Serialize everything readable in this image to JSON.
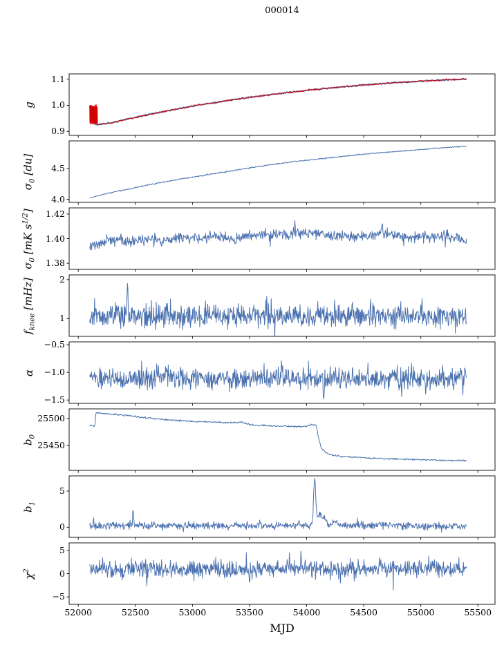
{
  "chart": {
    "type": "line",
    "title": "000014",
    "xlabel": "MJD",
    "xlim": [
      51920,
      55650
    ],
    "x_data_range": [
      52100,
      55400
    ],
    "xticks": [
      [
        52000,
        "52000"
      ],
      [
        52500,
        "52500"
      ],
      [
        53000,
        "53000"
      ],
      [
        53500,
        "53500"
      ],
      [
        54000,
        "54000"
      ],
      [
        54500,
        "54500"
      ],
      [
        55000,
        "55000"
      ],
      [
        55500,
        "55500"
      ]
    ],
    "line_color": "#4c72b0",
    "overlay_color": "#d40000",
    "axis_color": "#000000",
    "panels": [
      {
        "name": "gain",
        "ylabel": "g",
        "ylim": [
          0.885,
          1.12
        ],
        "yticks": [
          [
            0.9,
            "0.9"
          ],
          [
            1.0,
            "1.0"
          ],
          [
            1.1,
            "1.1"
          ]
        ],
        "series": [
          {
            "name": "g-fit-blue",
            "color": "#4c72b0",
            "lw": 1.8,
            "noise": 0.0012,
            "n": 520,
            "keypoints": [
              [
                52100,
                0.998
              ],
              [
                52118,
                0.955
              ],
              [
                52135,
                0.93
              ],
              [
                52170,
                0.926
              ],
              [
                52300,
                0.934
              ],
              [
                52450,
                0.949
              ],
              [
                52600,
                0.963
              ],
              [
                52800,
                0.981
              ],
              [
                53000,
                0.997
              ],
              [
                53200,
                1.011
              ],
              [
                53400,
                1.024
              ],
              [
                53600,
                1.036
              ],
              [
                53800,
                1.047
              ],
              [
                54000,
                1.057
              ],
              [
                54200,
                1.066
              ],
              [
                54400,
                1.074
              ],
              [
                54600,
                1.081
              ],
              [
                54800,
                1.087
              ],
              [
                55000,
                1.092
              ],
              [
                55200,
                1.097
              ],
              [
                55400,
                1.1
              ]
            ]
          },
          {
            "name": "g-data-red",
            "color": "#d40000",
            "lw": 1.0,
            "noise": 0.0018,
            "n": 520,
            "burst": {
              "x0": 52100,
              "x1": 52168,
              "ymin": 0.928,
              "ymax": 1.002
            },
            "keypoints": [
              [
                52100,
                0.998
              ],
              [
                52118,
                0.955
              ],
              [
                52135,
                0.93
              ],
              [
                52170,
                0.926
              ],
              [
                52300,
                0.934
              ],
              [
                52450,
                0.949
              ],
              [
                52600,
                0.963
              ],
              [
                52800,
                0.981
              ],
              [
                53000,
                0.997
              ],
              [
                53200,
                1.011
              ],
              [
                53400,
                1.024
              ],
              [
                53600,
                1.036
              ],
              [
                53800,
                1.047
              ],
              [
                54000,
                1.057
              ],
              [
                54200,
                1.066
              ],
              [
                54400,
                1.074
              ],
              [
                54600,
                1.081
              ],
              [
                54800,
                1.087
              ],
              [
                55000,
                1.092
              ],
              [
                55200,
                1.097
              ],
              [
                55400,
                1.1
              ]
            ]
          }
        ]
      },
      {
        "name": "sigma0-du",
        "ylabel": "σ_{0} [du]",
        "ylim": [
          3.95,
          4.95
        ],
        "yticks": [
          [
            4.0,
            "4.0"
          ],
          [
            4.5,
            "4.5"
          ]
        ],
        "series": [
          {
            "name": "sigma0-du-line",
            "color": "#4c72b0",
            "lw": 1.0,
            "noise": 0.005,
            "n": 700,
            "keypoints": [
              [
                52100,
                4.02
              ],
              [
                52200,
                4.07
              ],
              [
                52350,
                4.135
              ],
              [
                52500,
                4.19
              ],
              [
                52700,
                4.265
              ],
              [
                52900,
                4.33
              ],
              [
                53100,
                4.39
              ],
              [
                53300,
                4.45
              ],
              [
                53500,
                4.51
              ],
              [
                53700,
                4.565
              ],
              [
                53900,
                4.615
              ],
              [
                54100,
                4.655
              ],
              [
                54300,
                4.695
              ],
              [
                54500,
                4.735
              ],
              [
                54700,
                4.765
              ],
              [
                54900,
                4.795
              ],
              [
                55100,
                4.825
              ],
              [
                55250,
                4.845
              ],
              [
                55400,
                4.865
              ]
            ]
          }
        ]
      },
      {
        "name": "sigma0-mk",
        "ylabel": "σ_{0} [mK s^{1/2}]",
        "ylim": [
          1.375,
          1.425
        ],
        "yticks": [
          [
            1.38,
            "1.38"
          ],
          [
            1.4,
            "1.40"
          ],
          [
            1.42,
            "1.42"
          ]
        ],
        "series": [
          {
            "name": "sigma0-mk-line",
            "color": "#4c72b0",
            "lw": 1.0,
            "noise": 0.0021,
            "heavy": true,
            "n": 800,
            "spikes": [
              [
                54660,
                0.009,
                6
              ]
            ],
            "keypoints": [
              [
                52100,
                1.3935
              ],
              [
                52200,
                1.3965
              ],
              [
                52300,
                1.3985
              ],
              [
                52450,
                1.3975
              ],
              [
                52600,
                1.3995
              ],
              [
                52750,
                1.398
              ],
              [
                52900,
                1.4
              ],
              [
                53050,
                1.4005
              ],
              [
                53200,
                1.4015
              ],
              [
                53350,
                1.4
              ],
              [
                53500,
                1.402
              ],
              [
                53650,
                1.403
              ],
              [
                53800,
                1.4035
              ],
              [
                53950,
                1.4045
              ],
              [
                54100,
                1.4035
              ],
              [
                54250,
                1.402
              ],
              [
                54400,
                1.4015
              ],
              [
                54550,
                1.4025
              ],
              [
                54700,
                1.4045
              ],
              [
                54850,
                1.4005
              ],
              [
                55000,
                1.4015
              ],
              [
                55150,
                1.4025
              ],
              [
                55300,
                1.4005
              ],
              [
                55400,
                1.398
              ]
            ]
          }
        ]
      },
      {
        "name": "fknee",
        "ylabel": "f_{knee} [mHz]",
        "ylim": [
          0.55,
          2.12
        ],
        "yticks": [
          [
            1,
            "1"
          ],
          [
            2,
            "2"
          ]
        ],
        "series": [
          {
            "name": "fknee-line",
            "color": "#4c72b0",
            "lw": 1.0,
            "noise": 0.15,
            "heavy": true,
            "n": 850,
            "spikes": [
              [
                52430,
                0.85,
                5
              ],
              [
                53650,
                0.35,
                4
              ],
              [
                54560,
                0.3,
                4
              ]
            ],
            "keypoints": [
              [
                52100,
                1.08
              ],
              [
                53000,
                1.06
              ],
              [
                54000,
                1.07
              ],
              [
                55400,
                1.03
              ]
            ]
          }
        ]
      },
      {
        "name": "alpha",
        "ylabel": "α",
        "ylim": [
          -1.56,
          -0.45
        ],
        "yticks": [
          [
            -1.5,
            "−1.5"
          ],
          [
            -1.0,
            "−1.0"
          ],
          [
            -0.5,
            "−0.5"
          ]
        ],
        "series": [
          {
            "name": "alpha-line",
            "color": "#4c72b0",
            "lw": 1.0,
            "noise": 0.095,
            "heavy": true,
            "n": 850,
            "spikes": [
              [
                53780,
                0.32,
                4
              ],
              [
                54150,
                -0.3,
                4
              ]
            ],
            "keypoints": [
              [
                52100,
                -1.11
              ],
              [
                53500,
                -1.1
              ],
              [
                54500,
                -1.12
              ],
              [
                55400,
                -1.1
              ]
            ]
          }
        ]
      },
      {
        "name": "b0",
        "ylabel": "b_{0}",
        "ylim": [
          25403,
          25518
        ],
        "yticks": [
          [
            25450,
            "25450"
          ],
          [
            25500,
            "25500"
          ]
        ],
        "series": [
          {
            "name": "b0-line",
            "color": "#4c72b0",
            "lw": 1.0,
            "noise": 0.7,
            "n": 800,
            "keypoints": [
              [
                52100,
                25487
              ],
              [
                52145,
                25486
              ],
              [
                52155,
                25511
              ],
              [
                52300,
                25508
              ],
              [
                52450,
                25505
              ],
              [
                52600,
                25501
              ],
              [
                52750,
                25498
              ],
              [
                52900,
                25496
              ],
              [
                53050,
                25494
              ],
              [
                53200,
                25493
              ],
              [
                53350,
                25492
              ],
              [
                53430,
                25493
              ],
              [
                53520,
                25488
              ],
              [
                53600,
                25487
              ],
              [
                53750,
                25486
              ],
              [
                53900,
                25485
              ],
              [
                54000,
                25485
              ],
              [
                54040,
                25489
              ],
              [
                54085,
                25487
              ],
              [
                54105,
                25463
              ],
              [
                54130,
                25444
              ],
              [
                54170,
                25436
              ],
              [
                54230,
                25431
              ],
              [
                54300,
                25429
              ],
              [
                54400,
                25428
              ],
              [
                54550,
                25426
              ],
              [
                54700,
                25425
              ],
              [
                54850,
                25424
              ],
              [
                55000,
                25423
              ],
              [
                55150,
                25422
              ],
              [
                55400,
                25421
              ]
            ]
          }
        ]
      },
      {
        "name": "b1",
        "ylabel": "b_{1}",
        "ylim": [
          -1.4,
          7.1
        ],
        "yticks": [
          [
            0,
            "0"
          ],
          [
            5,
            "5"
          ]
        ],
        "series": [
          {
            "name": "b1-line",
            "color": "#4c72b0",
            "lw": 1.0,
            "noise": 0.24,
            "heavy": true,
            "n": 850,
            "spikes": [
              [
                52480,
                2.2,
                4
              ],
              [
                53590,
                0.9,
                4
              ],
              [
                53930,
                0.7,
                4
              ],
              [
                54070,
                6.0,
                9
              ],
              [
                54120,
                1.6,
                30
              ],
              [
                54240,
                0.5,
                15
              ]
            ],
            "keypoints": [
              [
                52100,
                0.25
              ],
              [
                53000,
                0.2
              ],
              [
                54000,
                0.25
              ],
              [
                54300,
                0.3
              ],
              [
                55400,
                0.15
              ]
            ]
          }
        ]
      },
      {
        "name": "chi2",
        "ylabel": "χ^{2}",
        "ylim": [
          -6.6,
          6.6
        ],
        "yticks": [
          [
            -5,
            "−5"
          ],
          [
            0,
            "0"
          ],
          [
            5,
            "5"
          ]
        ],
        "series": [
          {
            "name": "chi2-line",
            "color": "#4c72b0",
            "lw": 1.0,
            "noise": 0.9,
            "heavy": true,
            "n": 850,
            "spikes": [
              [
                53500,
                -3.0,
                3
              ],
              [
                53950,
                2.8,
                3
              ],
              [
                54650,
                2.2,
                3
              ],
              [
                52600,
                -2.0,
                3
              ]
            ],
            "keypoints": [
              [
                52100,
                0.8
              ],
              [
                53000,
                1.0
              ],
              [
                54000,
                1.0
              ],
              [
                55400,
                1.1
              ]
            ]
          }
        ]
      }
    ]
  }
}
